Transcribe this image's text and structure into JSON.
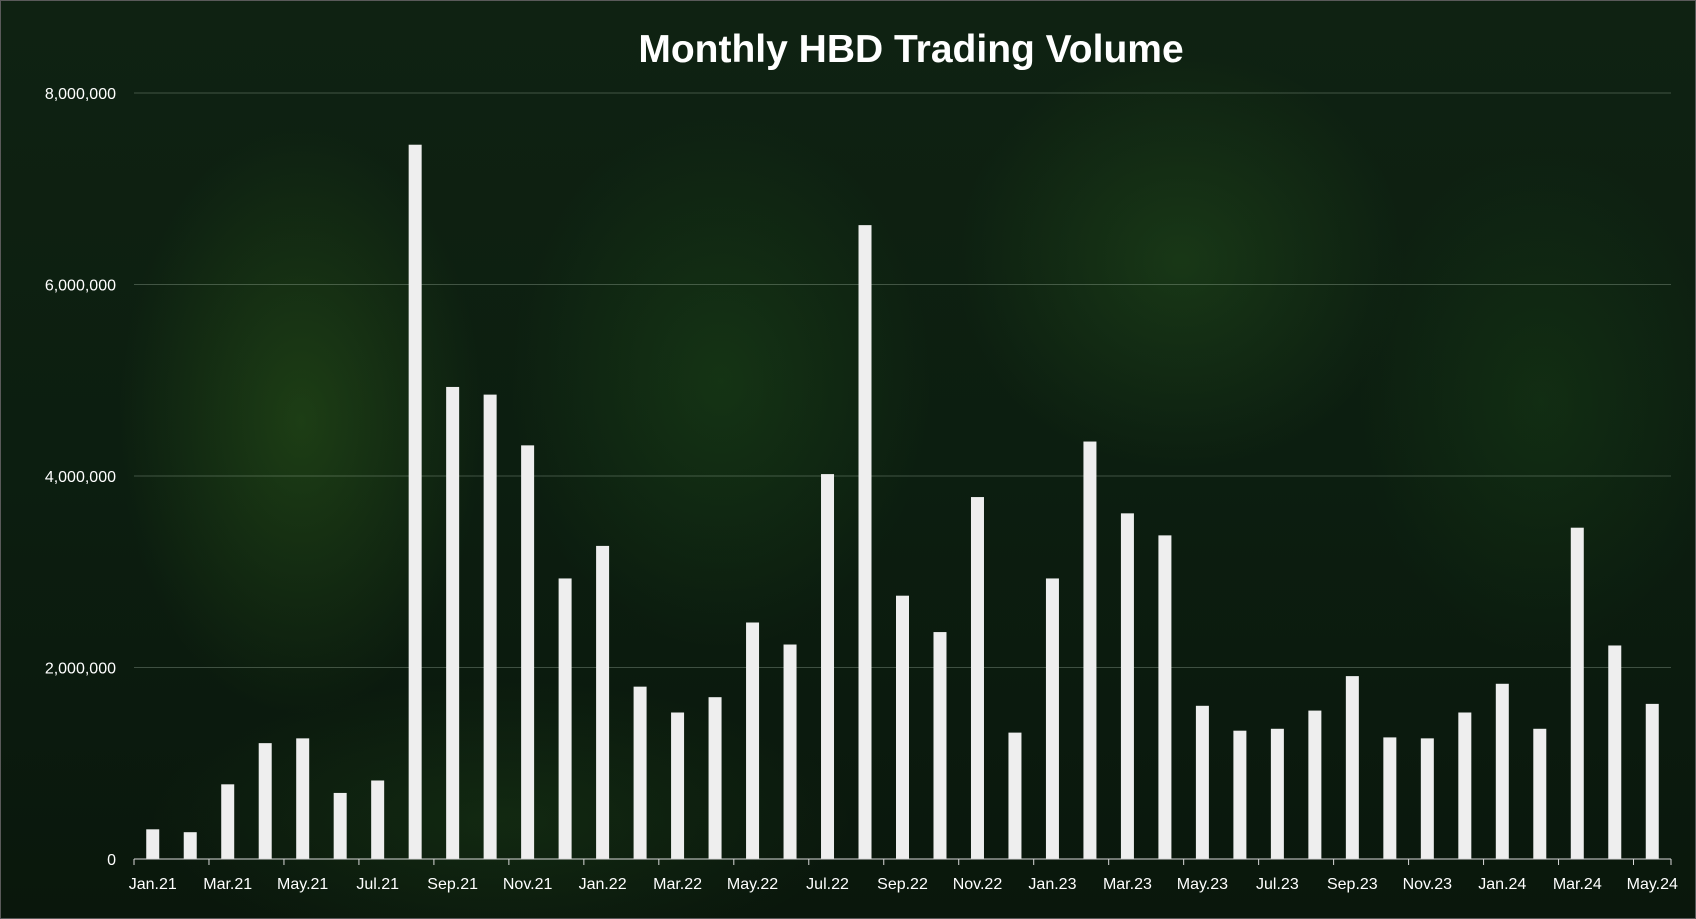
{
  "chart_data": {
    "type": "bar",
    "title": "Monthly HBD Trading Volume",
    "xlabel": "",
    "ylabel": "",
    "ylim": [
      0,
      8000000
    ],
    "yticks": [
      0,
      2000000,
      4000000,
      6000000,
      8000000
    ],
    "ytick_labels": [
      "0",
      "2,000,000",
      "4,000,000",
      "6,000,000",
      "8,000,000"
    ],
    "grid": true,
    "legend": "none",
    "bar_color": "#eeeeee",
    "categories": [
      "Jan.21",
      "Feb.21",
      "Mar.21",
      "Apr.21",
      "May.21",
      "Jun.21",
      "Jul.21",
      "Aug.21",
      "Sep.21",
      "Oct.21",
      "Nov.21",
      "Dec.21",
      "Jan.22",
      "Feb.22",
      "Mar.22",
      "Apr.22",
      "May.22",
      "Jun.22",
      "Jul.22",
      "Aug.22",
      "Sep.22",
      "Oct.22",
      "Nov.22",
      "Dec.22",
      "Jan.23",
      "Feb.23",
      "Mar.23",
      "Apr.23",
      "May.23",
      "Jun.23",
      "Jul.23",
      "Aug.23",
      "Sep.23",
      "Oct.23",
      "Nov.23",
      "Dec.23",
      "Jan.24",
      "Feb.24",
      "Mar.24",
      "Apr.24",
      "May.24"
    ],
    "xtick_labels": [
      "Jan.21",
      "Mar.21",
      "May.21",
      "Jul.21",
      "Sep.21",
      "Nov.21",
      "Jan.22",
      "Mar.22",
      "May.22",
      "Jul.22",
      "Sep.22",
      "Nov.22",
      "Jan.23",
      "Mar.23",
      "May.23",
      "Jul.23",
      "Sep.23",
      "Nov.23",
      "Jan.24",
      "Mar.24",
      "May.24"
    ],
    "values": [
      310000,
      280000,
      780000,
      1210000,
      1260000,
      690000,
      820000,
      7460000,
      4930000,
      4850000,
      4320000,
      2930000,
      3270000,
      1800000,
      1530000,
      1690000,
      2470000,
      2240000,
      4020000,
      6620000,
      2750000,
      2370000,
      3780000,
      1320000,
      2930000,
      4360000,
      3610000,
      3380000,
      1600000,
      1340000,
      1360000,
      1550000,
      1910000,
      1270000,
      1260000,
      1530000,
      1830000,
      1360000,
      3460000,
      2230000,
      1620000
    ]
  }
}
